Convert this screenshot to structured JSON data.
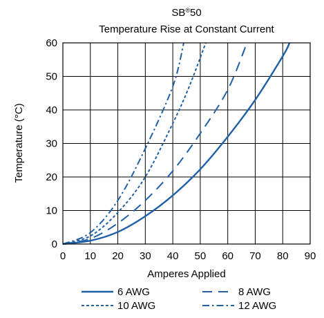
{
  "chart_data": {
    "type": "line",
    "title": "SB",
    "title_superscript": "®",
    "title_suffix": "50",
    "subtitle": "Temperature Rise at Constant Current",
    "xlabel": "Amperes Applied",
    "ylabel": "Temperature (°C)",
    "xlim": [
      0,
      90
    ],
    "ylim": [
      0,
      60
    ],
    "x_ticks": [
      0,
      10,
      20,
      30,
      40,
      50,
      60,
      70,
      80,
      90
    ],
    "y_ticks": [
      0,
      10,
      20,
      30,
      40,
      50,
      60
    ],
    "grid": true,
    "legend_position": "bottom",
    "line_color": "#1f5fa8",
    "series": [
      {
        "name": "6 AWG",
        "dash": "solid",
        "points": [
          [
            0,
            0
          ],
          [
            10,
            1
          ],
          [
            20,
            3.6
          ],
          [
            30,
            8.3
          ],
          [
            40,
            14.5
          ],
          [
            50,
            22.3
          ],
          [
            60,
            32
          ],
          [
            70,
            43
          ],
          [
            80,
            56
          ],
          [
            82.5,
            60
          ]
        ]
      },
      {
        "name": "8 AWG",
        "dash": "long-dash",
        "points": [
          [
            0,
            0
          ],
          [
            10,
            1.6
          ],
          [
            20,
            6.2
          ],
          [
            30,
            13
          ],
          [
            40,
            21.8
          ],
          [
            50,
            33
          ],
          [
            60,
            46
          ],
          [
            67,
            60
          ]
        ]
      },
      {
        "name": "10 AWG",
        "dash": "short-dash",
        "points": [
          [
            0,
            0
          ],
          [
            10,
            2.4
          ],
          [
            20,
            9.4
          ],
          [
            30,
            20
          ],
          [
            40,
            36
          ],
          [
            46,
            47
          ],
          [
            52,
            60
          ]
        ]
      },
      {
        "name": "12 AWG",
        "dash": "dash-dot",
        "points": [
          [
            0,
            0
          ],
          [
            10,
            3.4
          ],
          [
            20,
            13
          ],
          [
            30,
            28.5
          ],
          [
            40,
            47
          ],
          [
            44,
            60
          ]
        ]
      }
    ]
  }
}
